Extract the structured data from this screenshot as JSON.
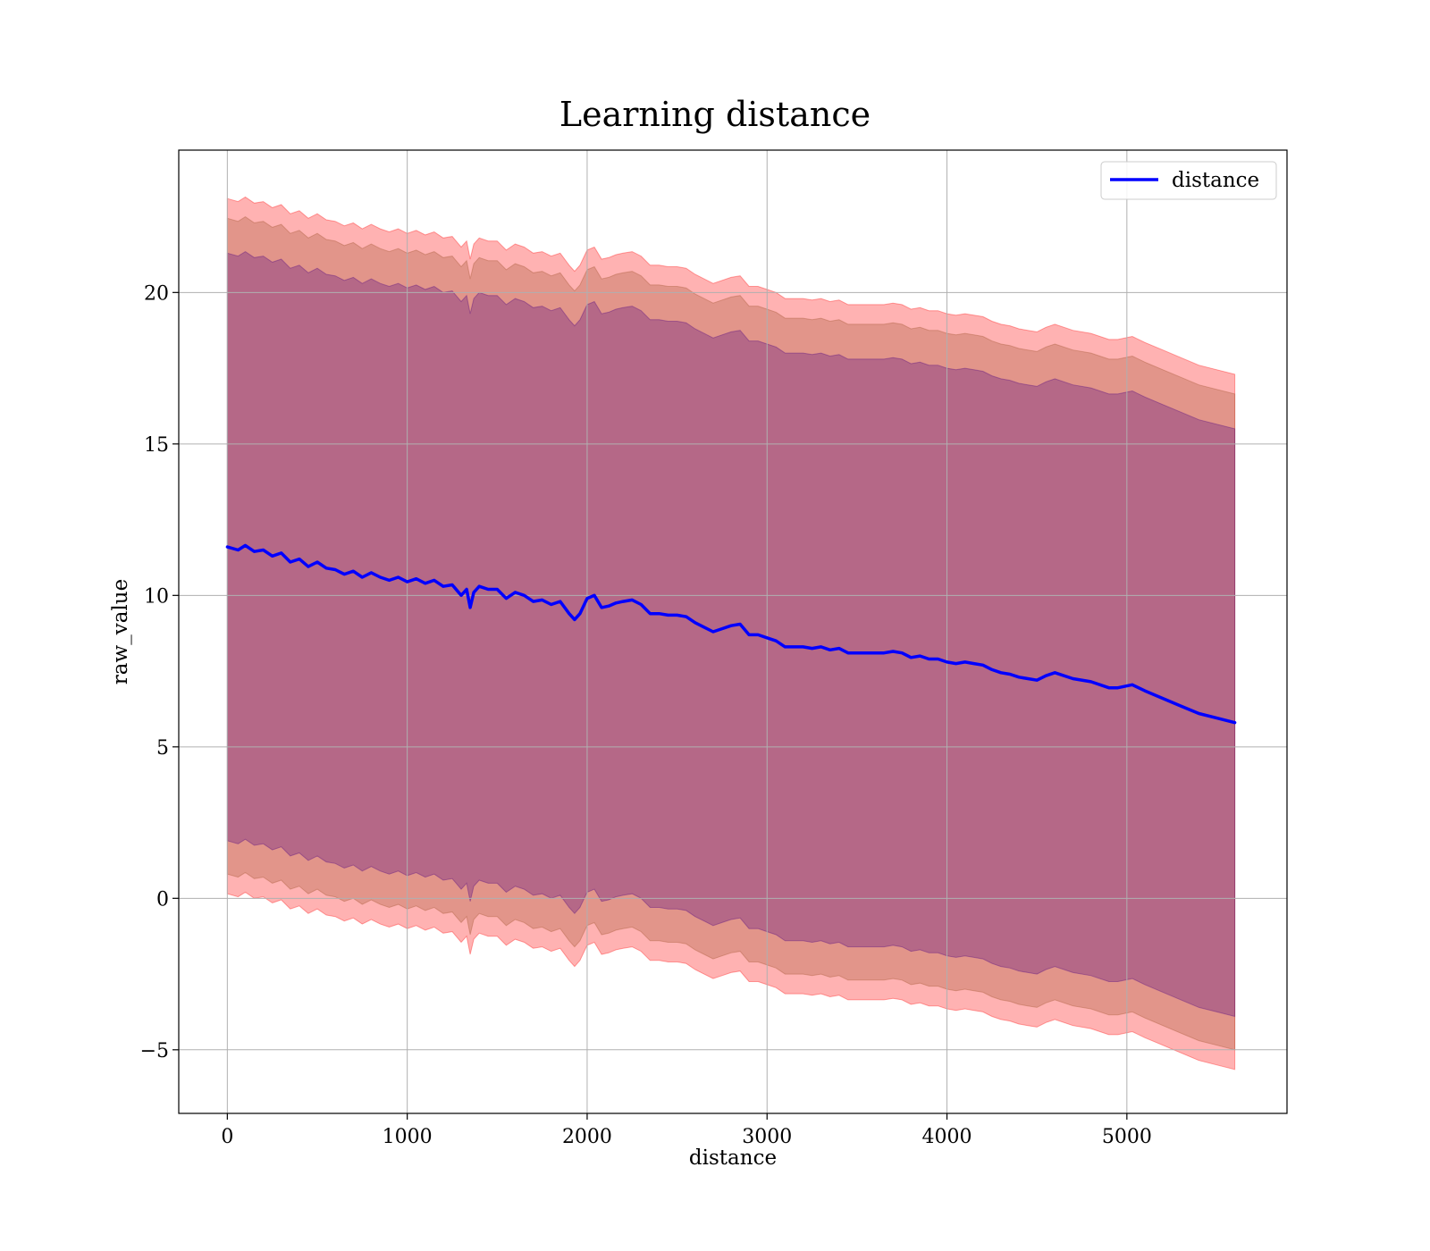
{
  "chart_data": {
    "type": "line",
    "title": "Learning distance",
    "xlabel": "distance",
    "ylabel": "raw_value",
    "xlim": [
      -270,
      5890
    ],
    "ylim": [
      -7.1,
      24.7
    ],
    "xticks": [
      0,
      1000,
      2000,
      3000,
      4000,
      5000
    ],
    "yticks": [
      -5,
      0,
      5,
      10,
      15,
      20
    ],
    "ytick_labels": [
      "−5",
      "0",
      "5",
      "10",
      "15",
      "20"
    ],
    "grid": true,
    "legend": {
      "position": "top-right",
      "entries": [
        "distance"
      ]
    },
    "colors": {
      "line": "#0000ff",
      "band_outer": "#ff0000",
      "band_middle": "#a0522d",
      "band_inner": "#4b0082",
      "grid": "#b0b0b0"
    },
    "series": [
      {
        "name": "distance",
        "x": [
          0,
          60,
          100,
          150,
          200,
          250,
          300,
          350,
          400,
          450,
          500,
          550,
          600,
          650,
          700,
          750,
          800,
          850,
          900,
          950,
          1000,
          1050,
          1100,
          1150,
          1200,
          1250,
          1300,
          1330,
          1350,
          1370,
          1400,
          1450,
          1500,
          1550,
          1600,
          1650,
          1700,
          1750,
          1800,
          1850,
          1900,
          1930,
          1960,
          2000,
          2040,
          2080,
          2120,
          2160,
          2200,
          2250,
          2300,
          2350,
          2400,
          2450,
          2500,
          2550,
          2600,
          2650,
          2700,
          2750,
          2800,
          2850,
          2900,
          2950,
          3000,
          3050,
          3100,
          3150,
          3200,
          3250,
          3300,
          3350,
          3400,
          3450,
          3500,
          3550,
          3600,
          3650,
          3700,
          3750,
          3800,
          3850,
          3900,
          3950,
          4000,
          4050,
          4100,
          4150,
          4200,
          4250,
          4300,
          4350,
          4400,
          4450,
          4500,
          4550,
          4600,
          4700,
          4800,
          4900,
          4950,
          5030,
          5100,
          5200,
          5300,
          5400,
          5500,
          5600
        ],
        "y": [
          11.6,
          11.5,
          11.65,
          11.45,
          11.5,
          11.3,
          11.4,
          11.1,
          11.2,
          10.95,
          11.1,
          10.9,
          10.85,
          10.7,
          10.8,
          10.6,
          10.75,
          10.6,
          10.5,
          10.6,
          10.45,
          10.55,
          10.4,
          10.5,
          10.3,
          10.35,
          10.0,
          10.2,
          9.6,
          10.1,
          10.3,
          10.2,
          10.2,
          9.9,
          10.1,
          10.0,
          9.8,
          9.85,
          9.7,
          9.8,
          9.4,
          9.2,
          9.4,
          9.9,
          10.0,
          9.6,
          9.65,
          9.75,
          9.8,
          9.85,
          9.7,
          9.4,
          9.4,
          9.35,
          9.35,
          9.3,
          9.1,
          8.95,
          8.8,
          8.9,
          9.0,
          9.05,
          8.7,
          8.7,
          8.6,
          8.5,
          8.3,
          8.3,
          8.3,
          8.25,
          8.3,
          8.2,
          8.25,
          8.1,
          8.1,
          8.1,
          8.1,
          8.1,
          8.15,
          8.1,
          7.95,
          8.0,
          7.9,
          7.9,
          7.8,
          7.75,
          7.8,
          7.75,
          7.7,
          7.55,
          7.45,
          7.4,
          7.3,
          7.25,
          7.2,
          7.35,
          7.45,
          7.25,
          7.15,
          6.95,
          6.95,
          7.05,
          6.85,
          6.6,
          6.35,
          6.1,
          5.95,
          5.8
        ],
        "bands": [
          {
            "name": "outer",
            "upper_offset": 11.5,
            "lower_offset": 11.45
          },
          {
            "name": "middle",
            "upper_offset": 10.85,
            "lower_offset": 10.8
          },
          {
            "name": "inner",
            "upper_offset": 9.7,
            "lower_offset": 9.7
          }
        ]
      }
    ]
  }
}
